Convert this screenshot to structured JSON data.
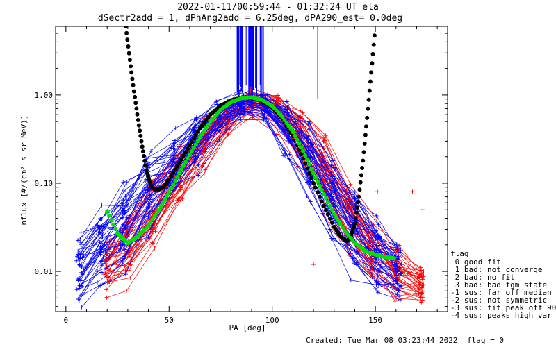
{
  "chart_data": {
    "type": "line",
    "title": "2022-01-11/00:59:44 - 01:32:24 UT ela",
    "subtitle": "dSectr2add = 1, dPhAng2add = 6.25deg, dPA290_est=   0.0deg",
    "xlabel": "PA [deg]",
    "ylabel": "nflux [#/(cm² s sr MeV)]",
    "xlim": [
      -5,
      185
    ],
    "ylim": [
      0.0035,
      6
    ],
    "yscale": "log",
    "x_ticks": [
      "0",
      "50",
      "100",
      "150"
    ],
    "y_ticks": [
      "0.01",
      "0.10",
      "1.00"
    ],
    "x_tick_values": [
      0,
      50,
      100,
      150
    ],
    "y_tick_values": [
      0.01,
      0.1,
      1.0
    ],
    "grid": false,
    "series": [
      {
        "color": "#0000ff",
        "style": "many thin lines with + markers (fine-resolution spectra)",
        "x": [
          7,
          17,
          28,
          40,
          52,
          63,
          74,
          85,
          96,
          107,
          118,
          129,
          140,
          151,
          161
        ],
        "y": [
          0.02,
          0.03,
          0.045,
          0.1,
          0.22,
          0.42,
          0.72,
          0.95,
          0.88,
          0.52,
          0.24,
          0.09,
          0.035,
          0.017,
          0.009
        ],
        "lo": [
          0.0035,
          0.006,
          0.009,
          0.02,
          0.05,
          0.12,
          0.28,
          0.5,
          0.5,
          0.18,
          0.06,
          0.02,
          0.007,
          0.004,
          0.004
        ],
        "hi": [
          0.03,
          0.06,
          0.11,
          0.25,
          0.45,
          0.7,
          0.95,
          1.15,
          1.1,
          0.9,
          0.55,
          0.25,
          0.09,
          0.045,
          0.025
        ]
      },
      {
        "color": "#ff0000",
        "style": "many thin lines with + markers (coarse-resolution spectra)",
        "x": [
          20,
          30,
          42,
          55,
          67,
          78,
          90,
          102,
          113,
          125,
          137,
          148,
          160,
          172
        ],
        "y": [
          0.012,
          0.02,
          0.05,
          0.14,
          0.35,
          0.65,
          0.85,
          0.7,
          0.35,
          0.12,
          0.04,
          0.015,
          0.008,
          0.006
        ],
        "lo": [
          0.005,
          0.006,
          0.012,
          0.04,
          0.11,
          0.3,
          0.55,
          0.35,
          0.12,
          0.04,
          0.012,
          0.005,
          0.0035,
          0.0035
        ],
        "hi": [
          0.025,
          0.05,
          0.12,
          0.3,
          0.6,
          0.9,
          1.2,
          1.1,
          0.75,
          0.35,
          0.12,
          0.045,
          0.02,
          0.012
        ]
      },
      {
        "color": "#00e000",
        "style": "thick dotted curve (model fit)",
        "x": [
          20,
          25,
          30,
          35,
          40,
          45,
          50,
          55,
          60,
          65,
          70,
          75,
          80,
          85,
          90,
          95,
          100,
          105,
          110,
          115,
          120,
          125,
          130,
          135,
          140,
          145,
          150,
          155,
          160
        ],
        "y": [
          0.048,
          0.027,
          0.021,
          0.025,
          0.033,
          0.05,
          0.08,
          0.13,
          0.21,
          0.33,
          0.5,
          0.68,
          0.83,
          0.92,
          0.94,
          0.88,
          0.75,
          0.56,
          0.38,
          0.23,
          0.13,
          0.075,
          0.045,
          0.029,
          0.021,
          0.017,
          0.0155,
          0.0145,
          0.014
        ]
      },
      {
        "color": "#000000",
        "style": "thick dotted curve (fit in loss-cone / anti-loss-cone range)",
        "x": [
          29,
          31,
          33,
          35,
          37,
          39,
          41,
          43,
          45,
          47,
          50,
          55,
          60,
          65,
          70,
          75,
          80,
          85,
          90,
          95,
          100,
          105,
          110,
          115,
          120,
          125,
          130,
          133,
          136,
          138,
          140,
          142,
          144,
          146,
          148,
          150
        ],
        "y": [
          6.0,
          2.5,
          1.1,
          0.52,
          0.26,
          0.14,
          0.095,
          0.085,
          0.085,
          0.09,
          0.11,
          0.17,
          0.27,
          0.42,
          0.6,
          0.76,
          0.87,
          0.93,
          0.93,
          0.86,
          0.72,
          0.53,
          0.34,
          0.19,
          0.1,
          0.055,
          0.032,
          0.025,
          0.022,
          0.024,
          0.035,
          0.07,
          0.18,
          0.55,
          1.8,
          6.0
        ]
      }
    ],
    "vertical_spikes": [
      {
        "color": "#0000ff",
        "x_range": [
          82,
          96
        ],
        "description": "dense vertical error bars near 90 deg extending above plot"
      },
      {
        "color": "#ff0000",
        "x": 122,
        "description": "single red vertical line"
      }
    ],
    "legend": {
      "placement": "right-bottom",
      "title": "flag",
      "entries": [
        " 0 good fit",
        " 1 bad: not converge",
        " 2 bad: no fit",
        " 3 bad: bad fgm state",
        "-1 sus: far off median",
        "-2 sus: not symmetric",
        "-3 sus: fit peak off 90",
        "-4 sus: peaks high var"
      ]
    },
    "footer": "Created: Tue Mar 08 03:23:44 2022",
    "flag_text": "flag = 0"
  }
}
